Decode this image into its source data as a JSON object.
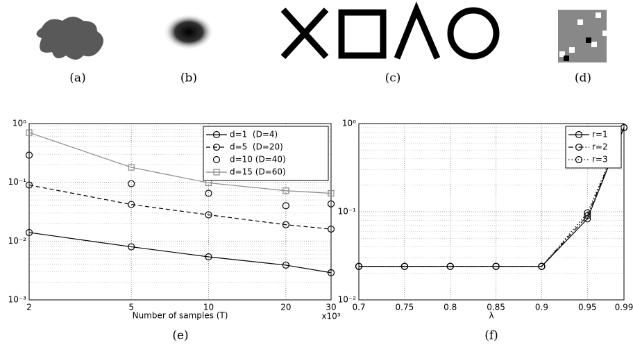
{
  "panels": [
    {
      "label": "(a)"
    },
    {
      "label": "(b)"
    },
    {
      "label": "(c)"
    },
    {
      "label": "(d)"
    }
  ],
  "chart_data": [
    {
      "type": "line",
      "caption": "(e)",
      "xlabel": "Number of samples (T)",
      "x_multiplier": "x10³",
      "xscale": "log",
      "yscale": "log",
      "grid": true,
      "legend": "upper right",
      "x": [
        2,
        5,
        10,
        20,
        30
      ],
      "xlim": [
        2,
        30
      ],
      "xticks": [
        2,
        5,
        10,
        20,
        30
      ],
      "ylim": [
        0.001,
        1
      ],
      "yticks": [
        {
          "value": 0.001,
          "label": "10⁻³"
        },
        {
          "value": 0.01,
          "label": "10⁻²"
        },
        {
          "value": 0.1,
          "label": "10⁻¹"
        },
        {
          "value": 1,
          "label": "10⁰"
        }
      ],
      "series": [
        {
          "name": "d=1  (D=4)",
          "color": "#000000",
          "linestyle": "solid",
          "marker": "circle",
          "values": [
            0.014,
            0.008,
            0.0054,
            0.0039,
            0.0029
          ]
        },
        {
          "name": "d=5  (D=20)",
          "color": "#000000",
          "linestyle": "dashed",
          "marker": "circle",
          "values": [
            0.09,
            0.042,
            0.028,
            0.019,
            0.016
          ]
        },
        {
          "name": "d=10 (D=40)",
          "color": "#000000",
          "linestyle": "none",
          "marker": "circle",
          "values": [
            0.29,
            0.095,
            0.065,
            0.04,
            0.043
          ]
        },
        {
          "name": "d=15 (D=60)",
          "color": "#888888",
          "linestyle": "solid",
          "marker": "square",
          "values": [
            0.7,
            0.18,
            0.098,
            0.072,
            0.065
          ]
        }
      ]
    },
    {
      "type": "line",
      "caption": "(f)",
      "xlabel": "λ",
      "xscale": "linear",
      "yscale": "log",
      "grid": true,
      "legend": "upper right",
      "x": [
        0.7,
        0.75,
        0.8,
        0.85,
        0.9,
        0.95,
        0.99
      ],
      "xlim": [
        0.7,
        0.99
      ],
      "xticks": [
        0.7,
        0.75,
        0.8,
        0.85,
        0.9,
        0.95,
        0.99
      ],
      "ylim": [
        0.01,
        1
      ],
      "yticks": [
        {
          "value": 0.01,
          "label": "10⁻²"
        },
        {
          "value": 0.1,
          "label": "10⁻¹"
        },
        {
          "value": 1,
          "label": "10⁰"
        }
      ],
      "series": [
        {
          "name": "r=1",
          "color": "#000000",
          "linestyle": "solid",
          "marker": "circle",
          "values": [
            0.024,
            0.024,
            0.024,
            0.024,
            0.024,
            0.083,
            0.9
          ]
        },
        {
          "name": "r=2",
          "color": "#000000",
          "linestyle": "dashdot",
          "marker": "circle",
          "values": [
            0.024,
            0.024,
            0.024,
            0.024,
            0.024,
            0.09,
            0.9
          ]
        },
        {
          "name": "r=3",
          "color": "#000000",
          "linestyle": "dotted",
          "marker": "circle",
          "values": [
            0.024,
            0.024,
            0.024,
            0.024,
            0.024,
            0.097,
            0.9
          ]
        }
      ]
    }
  ]
}
